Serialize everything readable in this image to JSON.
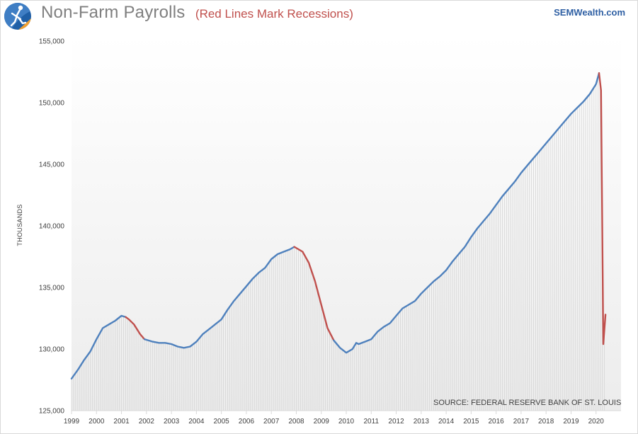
{
  "header": {
    "title": "Non-Farm Payrolls",
    "subtitle": "(Red Lines Mark Recessions)",
    "brand": "SEMWealth.com",
    "logo_icon": "runner-logo-icon"
  },
  "footer": {
    "source": "SOURCE: FEDERAL RESERVE BANK OF ST. LOUIS"
  },
  "chart_data": {
    "type": "line",
    "title": "Non-Farm Payrolls",
    "subtitle": "(Red Lines Mark Recessions)",
    "ylabel": "THOUSANDS",
    "xlabel": "",
    "ylim": [
      125000,
      155000
    ],
    "xlim": [
      1999,
      2021
    ],
    "yticks": [
      "125,000",
      "130,000",
      "135,000",
      "140,000",
      "145,000",
      "150,000",
      "155,000"
    ],
    "ytick_values": [
      125000,
      130000,
      135000,
      140000,
      145000,
      150000,
      155000
    ],
    "xticks": [
      "1999",
      "2000",
      "2001",
      "2002",
      "2003",
      "2004",
      "2005",
      "2006",
      "2007",
      "2008",
      "2009",
      "2010",
      "2011",
      "2012",
      "2013",
      "2014",
      "2015",
      "2016",
      "2017",
      "2018",
      "2019",
      "2020"
    ],
    "colors": {
      "line": "#4f81bd",
      "recession": "#c0504d",
      "drop": "#d9d9d9",
      "grid": "#d9d9d9"
    },
    "series": [
      {
        "values": [
          [
            1999.0,
            127600
          ],
          [
            1999.25,
            128300
          ],
          [
            1999.5,
            129100
          ],
          [
            1999.75,
            129800
          ],
          [
            2000.0,
            130800
          ],
          [
            2000.25,
            131700
          ],
          [
            2000.5,
            132000
          ],
          [
            2000.75,
            132300
          ],
          [
            2001.0,
            132700
          ],
          [
            2001.17,
            132600
          ],
          [
            2001.3,
            132400
          ],
          [
            2001.5,
            132000
          ],
          [
            2001.75,
            131200
          ],
          [
            2001.92,
            130800
          ],
          [
            2002.25,
            130600
          ],
          [
            2002.5,
            130500
          ],
          [
            2002.75,
            130500
          ],
          [
            2003.0,
            130400
          ],
          [
            2003.25,
            130200
          ],
          [
            2003.5,
            130100
          ],
          [
            2003.75,
            130200
          ],
          [
            2004.0,
            130600
          ],
          [
            2004.25,
            131200
          ],
          [
            2004.5,
            131600
          ],
          [
            2004.75,
            132000
          ],
          [
            2005.0,
            132400
          ],
          [
            2005.25,
            133200
          ],
          [
            2005.5,
            133900
          ],
          [
            2005.75,
            134500
          ],
          [
            2006.0,
            135100
          ],
          [
            2006.25,
            135700
          ],
          [
            2006.5,
            136200
          ],
          [
            2006.75,
            136600
          ],
          [
            2007.0,
            137300
          ],
          [
            2007.25,
            137700
          ],
          [
            2007.5,
            137900
          ],
          [
            2007.75,
            138100
          ],
          [
            2007.92,
            138300
          ],
          [
            2008.25,
            137900
          ],
          [
            2008.5,
            137000
          ],
          [
            2008.75,
            135500
          ],
          [
            2009.0,
            133600
          ],
          [
            2009.25,
            131700
          ],
          [
            2009.5,
            130700
          ],
          [
            2009.75,
            130100
          ],
          [
            2010.0,
            129700
          ],
          [
            2010.25,
            130000
          ],
          [
            2010.4,
            130500
          ],
          [
            2010.5,
            130400
          ],
          [
            2010.75,
            130600
          ],
          [
            2011.0,
            130800
          ],
          [
            2011.25,
            131400
          ],
          [
            2011.5,
            131800
          ],
          [
            2011.75,
            132100
          ],
          [
            2012.0,
            132700
          ],
          [
            2012.25,
            133300
          ],
          [
            2012.5,
            133600
          ],
          [
            2012.75,
            133900
          ],
          [
            2013.0,
            134500
          ],
          [
            2013.25,
            135000
          ],
          [
            2013.5,
            135500
          ],
          [
            2013.75,
            135900
          ],
          [
            2014.0,
            136400
          ],
          [
            2014.25,
            137100
          ],
          [
            2014.5,
            137700
          ],
          [
            2014.75,
            138300
          ],
          [
            2015.0,
            139100
          ],
          [
            2015.25,
            139800
          ],
          [
            2015.5,
            140400
          ],
          [
            2015.75,
            141000
          ],
          [
            2016.0,
            141700
          ],
          [
            2016.25,
            142400
          ],
          [
            2016.5,
            143000
          ],
          [
            2016.75,
            143600
          ],
          [
            2017.0,
            144300
          ],
          [
            2017.25,
            144900
          ],
          [
            2017.5,
            145500
          ],
          [
            2017.75,
            146100
          ],
          [
            2018.0,
            146700
          ],
          [
            2018.25,
            147300
          ],
          [
            2018.5,
            147900
          ],
          [
            2018.75,
            148500
          ],
          [
            2019.0,
            149100
          ],
          [
            2019.25,
            149600
          ],
          [
            2019.5,
            150100
          ],
          [
            2019.75,
            150700
          ],
          [
            2020.0,
            151500
          ],
          [
            2020.12,
            152400
          ],
          [
            2020.2,
            151000
          ],
          [
            2020.29,
            130400
          ],
          [
            2020.38,
            132800
          ]
        ]
      }
    ],
    "recessions": [
      [
        2001.17,
        2001.92
      ],
      [
        2007.92,
        2009.5
      ],
      [
        2020.12,
        2020.38
      ]
    ]
  }
}
